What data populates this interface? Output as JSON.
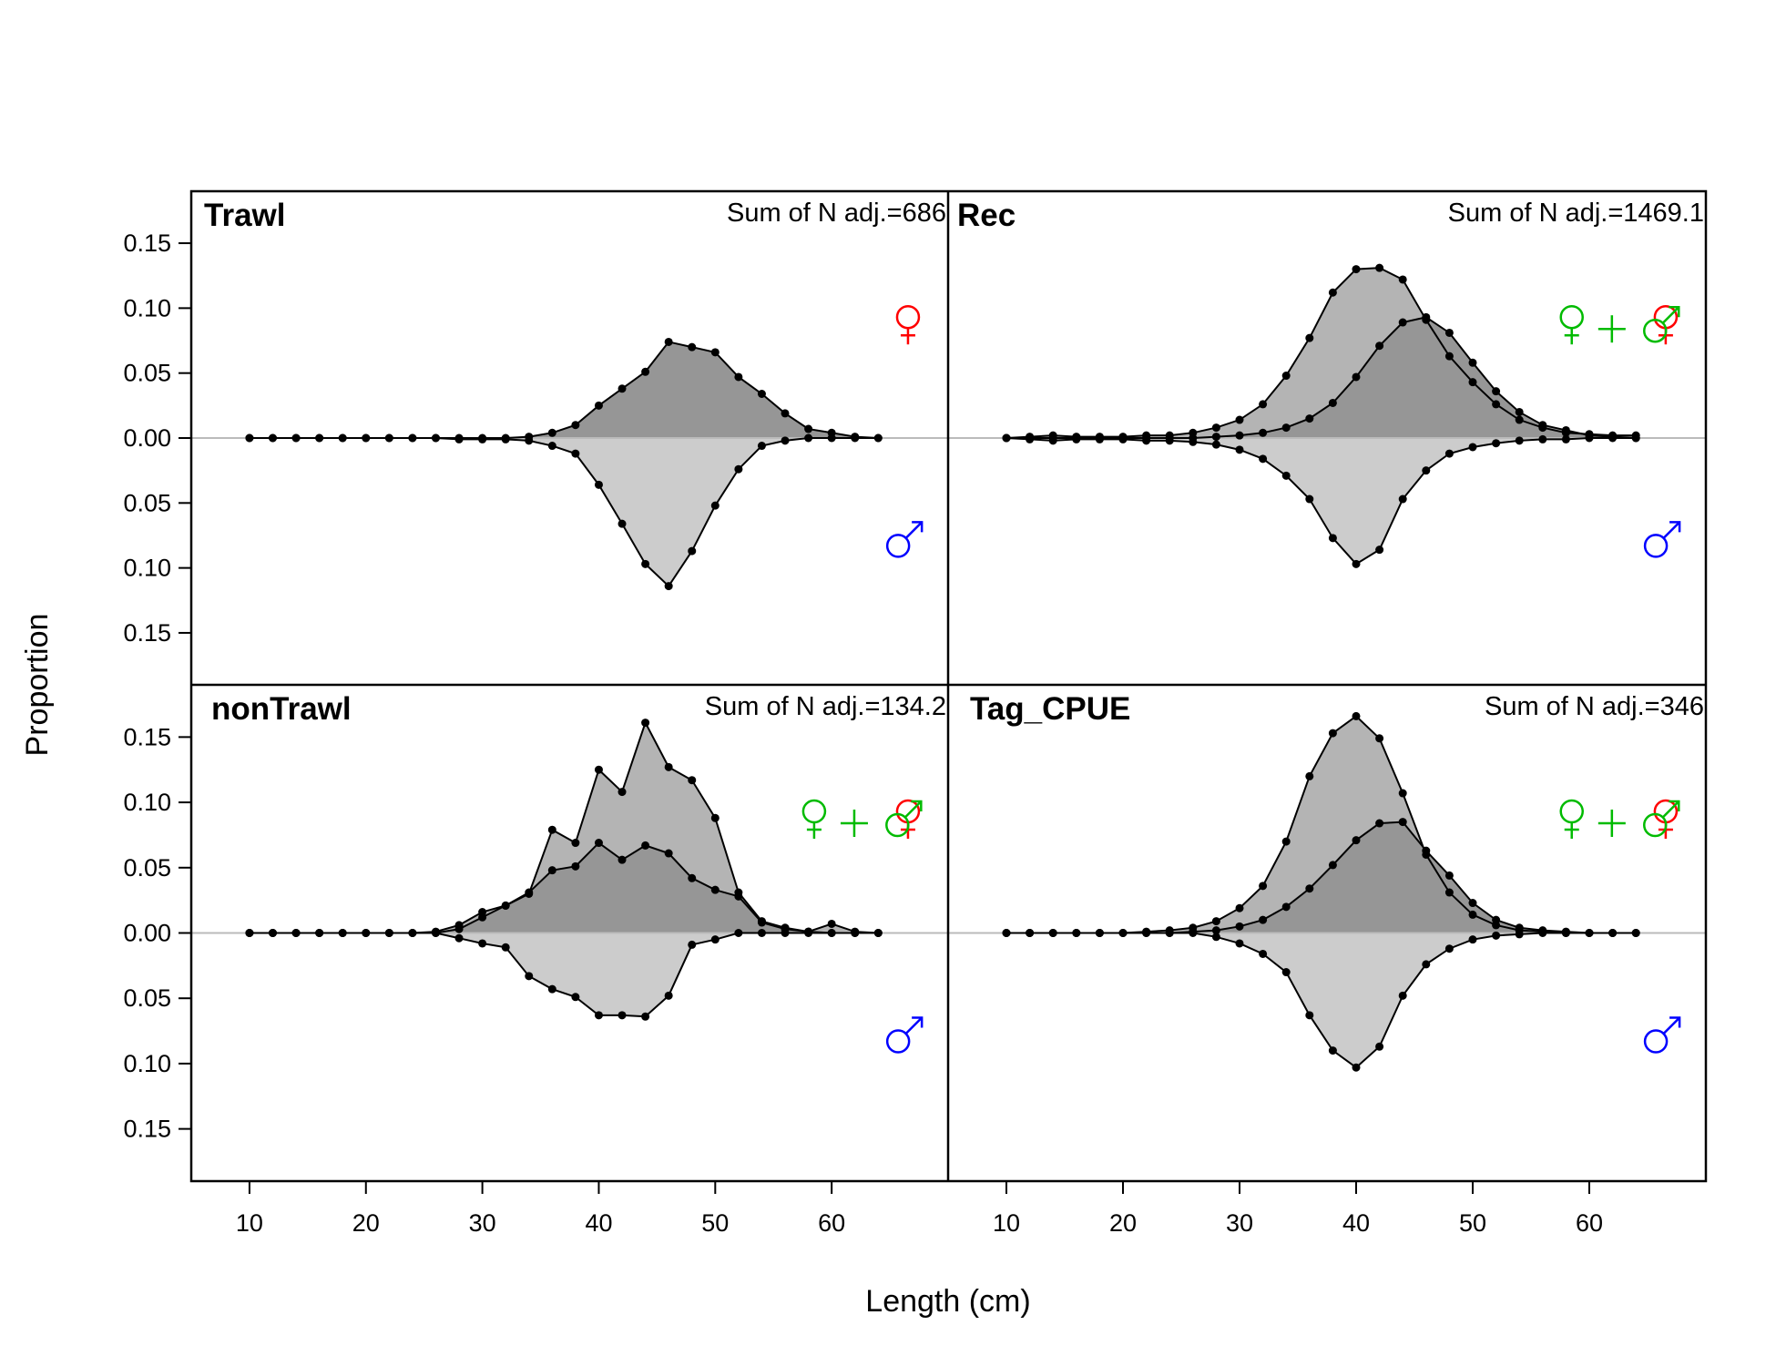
{
  "chart_data": {
    "type": "area",
    "xlabel": "Length (cm)",
    "ylabel": "Proportion",
    "xlim": [
      5,
      70
    ],
    "ylim": [
      -0.19,
      0.19
    ],
    "x_ticks": [
      10,
      20,
      30,
      40,
      50,
      60
    ],
    "y_ticks": [
      0.15,
      0.1,
      0.05,
      0.0,
      -0.05,
      -0.1,
      -0.15
    ],
    "y_tick_labels": [
      "0.15",
      "0.10",
      "0.05",
      "0.00",
      "0.05",
      "0.10",
      "0.15"
    ],
    "upper_sex_symbol": "female",
    "lower_sex_symbol": "male",
    "combined_sex_symbol": "female-plus-male",
    "colors": {
      "female_symbol": "#ff0000",
      "male_symbol": "#0000ff",
      "combined_symbol": "#00bb00",
      "upper_fill": "#969696",
      "combined_fill": "#b4b4b4",
      "lower_fill": "#cccccc",
      "zero_line": "#bbbbbb"
    },
    "x": [
      10,
      12,
      14,
      16,
      18,
      20,
      22,
      24,
      26,
      28,
      30,
      32,
      34,
      36,
      38,
      40,
      42,
      44,
      46,
      48,
      50,
      52,
      54,
      56,
      58,
      60,
      62,
      64
    ],
    "panels": [
      {
        "name": "Trawl",
        "n_label": "Sum of N adj.=686",
        "combined_symbol": false,
        "female": [
          0,
          0,
          0,
          0,
          0,
          0,
          0,
          0,
          0,
          0,
          0,
          0,
          0.001,
          0.004,
          0.01,
          0.025,
          0.038,
          0.051,
          0.074,
          0.07,
          0.066,
          0.047,
          0.034,
          0.019,
          0.007,
          0.004,
          0.001,
          0
        ],
        "combined": null,
        "male": [
          0,
          0,
          0,
          0,
          0,
          0,
          0,
          0,
          0,
          0.001,
          0.001,
          0.001,
          0.002,
          0.006,
          0.012,
          0.036,
          0.066,
          0.097,
          0.114,
          0.087,
          0.052,
          0.024,
          0.006,
          0.002,
          0,
          0,
          0,
          0
        ]
      },
      {
        "name": "Rec",
        "n_label": "Sum of N adj.=1469.1",
        "combined_symbol": true,
        "female": [
          0,
          0,
          0,
          0,
          0,
          0,
          0,
          0,
          0,
          0.001,
          0.002,
          0.004,
          0.008,
          0.015,
          0.027,
          0.047,
          0.071,
          0.089,
          0.093,
          0.081,
          0.058,
          0.036,
          0.02,
          0.01,
          0.006,
          0.002,
          0.001,
          0
        ],
        "combined": [
          0,
          0.001,
          0.002,
          0.001,
          0.001,
          0.001,
          0.002,
          0.002,
          0.004,
          0.008,
          0.014,
          0.026,
          0.048,
          0.077,
          0.112,
          0.13,
          0.131,
          0.122,
          0.091,
          0.063,
          0.043,
          0.026,
          0.014,
          0.008,
          0.004,
          0.003,
          0.002,
          0.002
        ],
        "male": [
          0,
          0.001,
          0.002,
          0.001,
          0.001,
          0.001,
          0.002,
          0.002,
          0.003,
          0.005,
          0.009,
          0.016,
          0.029,
          0.047,
          0.077,
          0.097,
          0.086,
          0.047,
          0.025,
          0.012,
          0.007,
          0.004,
          0.002,
          0.001,
          0.001,
          0,
          0,
          0
        ]
      },
      {
        "name": "nonTrawl",
        "n_label": "Sum of N adj.=134.2",
        "combined_symbol": true,
        "female": [
          0,
          0,
          0,
          0,
          0,
          0,
          0,
          0,
          0,
          0.003,
          0.012,
          0.021,
          0.031,
          0.048,
          0.051,
          0.069,
          0.056,
          0.067,
          0.061,
          0.042,
          0.033,
          0.028,
          0.008,
          0.003,
          0.001,
          0,
          0,
          0
        ],
        "combined": [
          0,
          0,
          0,
          0,
          0,
          0,
          0,
          0,
          0.001,
          0.006,
          0.016,
          0.021,
          0.03,
          0.079,
          0.069,
          0.125,
          0.108,
          0.161,
          0.127,
          0.117,
          0.088,
          0.031,
          0.009,
          0.004,
          0.001,
          0.007,
          0.001,
          0
        ],
        "male": [
          0,
          0,
          0,
          0,
          0,
          0,
          0,
          0,
          0,
          0.004,
          0.008,
          0.011,
          0.033,
          0.043,
          0.049,
          0.063,
          0.063,
          0.064,
          0.048,
          0.009,
          0.005,
          0,
          0,
          0,
          0,
          0,
          0,
          0
        ]
      },
      {
        "name": "Tag_CPUE",
        "n_label": "Sum of N adj.=346",
        "combined_symbol": true,
        "female": [
          0,
          0,
          0,
          0,
          0,
          0,
          0,
          0,
          0.001,
          0.002,
          0.005,
          0.01,
          0.02,
          0.034,
          0.052,
          0.071,
          0.084,
          0.085,
          0.063,
          0.044,
          0.023,
          0.01,
          0.004,
          0.002,
          0.001,
          0,
          0,
          0
        ],
        "combined": [
          0,
          0,
          0,
          0,
          0,
          0,
          0.001,
          0.002,
          0.004,
          0.009,
          0.019,
          0.036,
          0.07,
          0.12,
          0.153,
          0.166,
          0.149,
          0.107,
          0.06,
          0.031,
          0.014,
          0.006,
          0.002,
          0.001,
          0,
          0,
          0,
          0
        ],
        "male": [
          0,
          0,
          0,
          0,
          0,
          0,
          0,
          0,
          0,
          0.003,
          0.008,
          0.016,
          0.03,
          0.063,
          0.09,
          0.103,
          0.087,
          0.048,
          0.024,
          0.012,
          0.005,
          0.002,
          0.001,
          0,
          0,
          0,
          0,
          0
        ]
      }
    ]
  }
}
